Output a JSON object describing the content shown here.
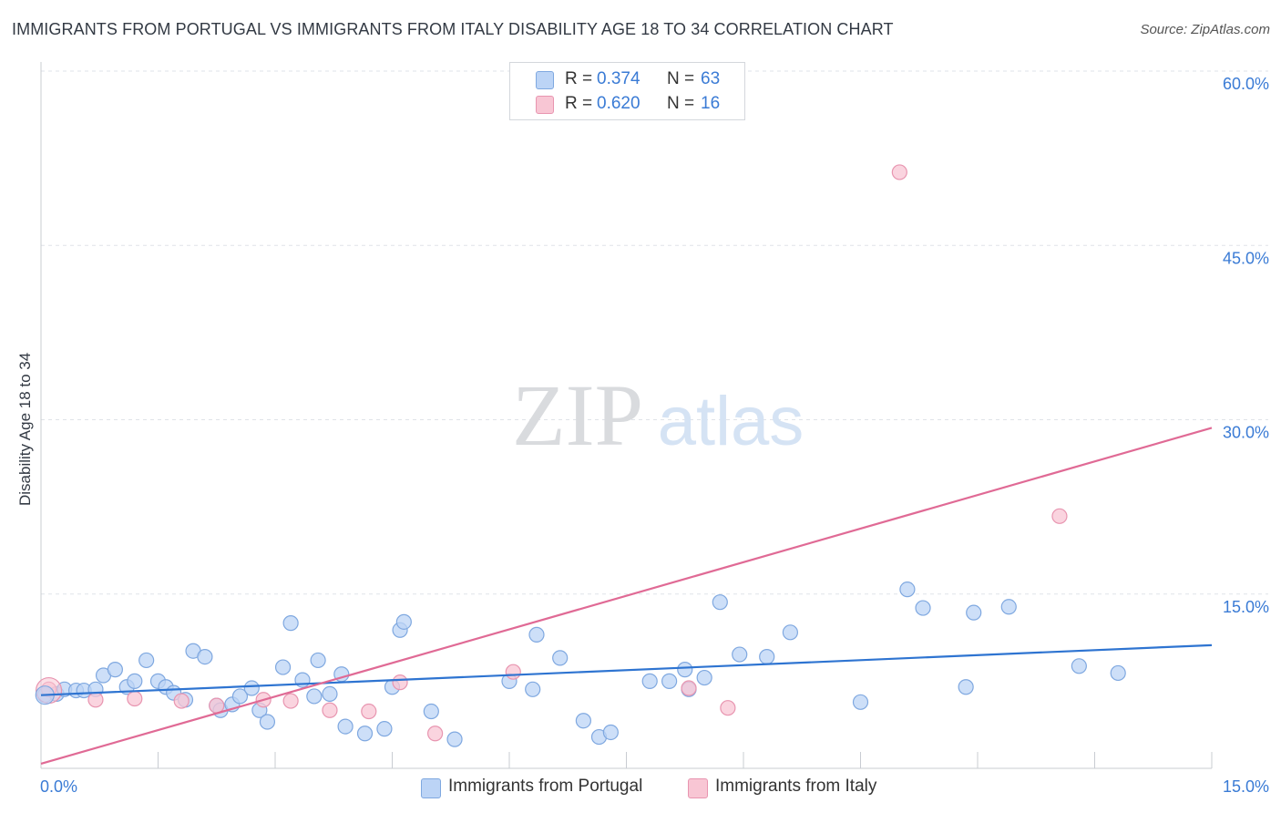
{
  "title": "IMMIGRANTS FROM PORTUGAL VS IMMIGRANTS FROM ITALY DISABILITY AGE 18 TO 34 CORRELATION CHART",
  "source": "Source: ZipAtlas.com",
  "watermark": {
    "zip": "ZIP",
    "atlas": "atlas"
  },
  "legend": {
    "portugal": {
      "r_label": "R =",
      "r_value": "0.374",
      "n_label": "N =",
      "n_value": "63"
    },
    "italy": {
      "r_label": "R =",
      "r_value": "0.620",
      "n_label": "N =",
      "n_value": "16"
    }
  },
  "colors": {
    "portugal_fill": "#bcd4f6",
    "portugal_stroke": "#7fa8e0",
    "portugal_line": "#2e74d1",
    "italy_fill": "#f8c6d4",
    "italy_stroke": "#e895b0",
    "italy_line": "#e06a95",
    "axis_text": "#3a7bd5",
    "grid": "#dfe3e8"
  },
  "chart_data": {
    "type": "scatter",
    "title": "IMMIGRANTS FROM PORTUGAL VS IMMIGRANTS FROM ITALY DISABILITY AGE 18 TO 34 CORRELATION CHART",
    "xlabel": "",
    "ylabel": "Disability Age 18 to 34",
    "xlim": [
      0,
      15
    ],
    "ylim": [
      0,
      60
    ],
    "x_tick_labels": [
      "0.0%",
      "15.0%"
    ],
    "y_ticks": [
      {
        "value": 15,
        "label": "15.0%"
      },
      {
        "value": 30,
        "label": "30.0%"
      },
      {
        "value": 45,
        "label": "45.0%"
      },
      {
        "value": 60,
        "label": "60.0%"
      }
    ],
    "grid": true,
    "legend_position": "bottom",
    "series": [
      {
        "name": "Immigrants from Portugal",
        "trend": {
          "x": [
            0,
            15
          ],
          "y": [
            6.3,
            10.6
          ]
        },
        "points": [
          [
            0.05,
            6.3
          ],
          [
            0.2,
            6.4
          ],
          [
            0.3,
            6.8
          ],
          [
            0.45,
            6.7
          ],
          [
            0.55,
            6.7
          ],
          [
            0.7,
            6.8
          ],
          [
            0.8,
            8.0
          ],
          [
            0.95,
            8.5
          ],
          [
            1.1,
            7.0
          ],
          [
            1.2,
            7.5
          ],
          [
            1.35,
            9.3
          ],
          [
            1.5,
            7.5
          ],
          [
            1.6,
            7.0
          ],
          [
            1.7,
            6.5
          ],
          [
            1.85,
            5.9
          ],
          [
            1.95,
            10.1
          ],
          [
            2.1,
            9.6
          ],
          [
            2.25,
            5.4
          ],
          [
            2.3,
            5.0
          ],
          [
            2.45,
            5.5
          ],
          [
            2.55,
            6.2
          ],
          [
            2.7,
            6.9
          ],
          [
            2.8,
            5.0
          ],
          [
            2.9,
            4.0
          ],
          [
            3.1,
            8.7
          ],
          [
            3.2,
            12.5
          ],
          [
            3.35,
            7.6
          ],
          [
            3.5,
            6.2
          ],
          [
            3.55,
            9.3
          ],
          [
            3.7,
            6.4
          ],
          [
            3.85,
            8.1
          ],
          [
            3.9,
            3.6
          ],
          [
            4.15,
            3.0
          ],
          [
            4.4,
            3.4
          ],
          [
            4.5,
            7.0
          ],
          [
            4.6,
            11.9
          ],
          [
            4.65,
            12.6
          ],
          [
            5.0,
            4.9
          ],
          [
            5.3,
            2.5
          ],
          [
            6.0,
            7.5
          ],
          [
            6.3,
            6.8
          ],
          [
            6.35,
            11.5
          ],
          [
            6.65,
            9.5
          ],
          [
            6.95,
            4.1
          ],
          [
            7.15,
            2.7
          ],
          [
            7.3,
            3.1
          ],
          [
            7.8,
            7.5
          ],
          [
            8.05,
            7.5
          ],
          [
            8.25,
            8.5
          ],
          [
            8.3,
            6.8
          ],
          [
            8.5,
            7.8
          ],
          [
            8.7,
            14.3
          ],
          [
            8.95,
            9.8
          ],
          [
            9.3,
            9.6
          ],
          [
            9.6,
            11.7
          ],
          [
            10.5,
            5.7
          ],
          [
            11.1,
            15.4
          ],
          [
            11.3,
            13.8
          ],
          [
            11.85,
            7.0
          ],
          [
            11.95,
            13.4
          ],
          [
            12.4,
            13.9
          ],
          [
            13.3,
            8.8
          ],
          [
            13.8,
            8.2
          ]
        ]
      },
      {
        "name": "Immigrants from Italy",
        "trend": {
          "x": [
            0,
            15
          ],
          "y": [
            0.4,
            29.3
          ]
        },
        "points": [
          [
            0.1,
            6.8
          ],
          [
            0.7,
            5.9
          ],
          [
            1.2,
            6.0
          ],
          [
            1.8,
            5.8
          ],
          [
            2.25,
            5.4
          ],
          [
            2.85,
            5.9
          ],
          [
            3.2,
            5.8
          ],
          [
            3.7,
            5.0
          ],
          [
            4.2,
            4.9
          ],
          [
            4.6,
            7.4
          ],
          [
            5.05,
            3.0
          ],
          [
            6.05,
            8.3
          ],
          [
            8.3,
            6.9
          ],
          [
            8.8,
            5.2
          ],
          [
            11.0,
            51.3
          ],
          [
            13.05,
            21.7
          ]
        ]
      }
    ]
  }
}
